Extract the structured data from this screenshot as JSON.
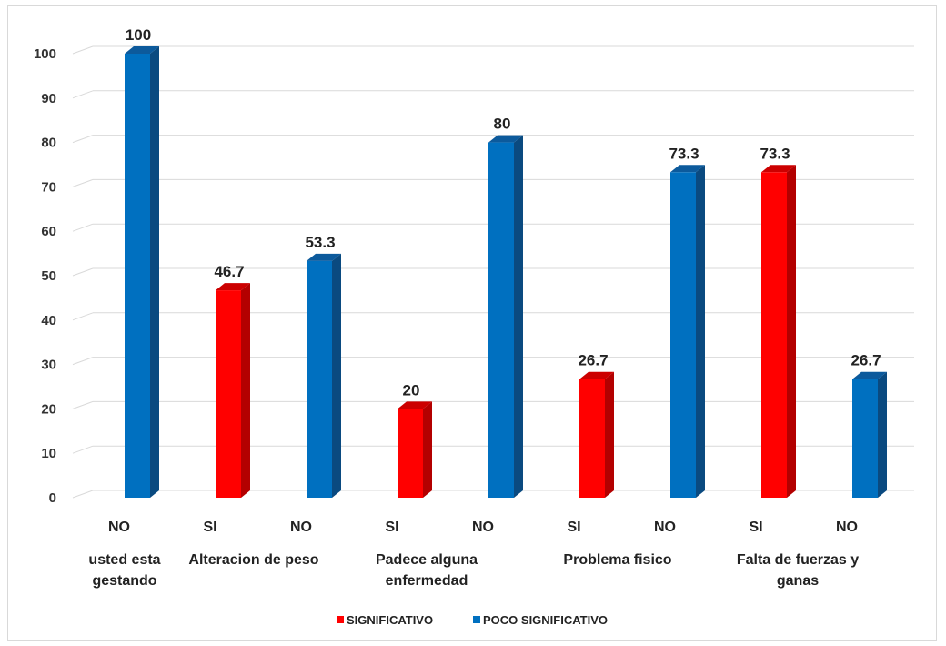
{
  "chart_data": {
    "type": "bar",
    "title": "",
    "xlabel": "",
    "ylabel": "",
    "ylim": [
      0,
      100
    ],
    "yticks": [
      0,
      10,
      20,
      30,
      40,
      50,
      60,
      70,
      80,
      90,
      100
    ],
    "grid": true,
    "legend_position": "bottom",
    "bars_3d": true,
    "categories": [
      "NO",
      "SI",
      "NO",
      "SI",
      "NO",
      "SI",
      "NO",
      "SI",
      "NO"
    ],
    "groups": [
      {
        "label": "usted esta gestando",
        "lines": [
          "usted esta",
          "gestando"
        ]
      },
      {
        "label": "Alteracion de peso",
        "lines": [
          "Alteracion de peso"
        ]
      },
      {
        "label": "Padece alguna enfermedad",
        "lines": [
          "Padece alguna",
          "enfermedad"
        ]
      },
      {
        "label": "Problema fisico",
        "lines": [
          "Problema fisico"
        ]
      },
      {
        "label": "Falta de fuerzas y ganas",
        "lines": [
          "Falta de fuerzas y",
          "ganas"
        ]
      }
    ],
    "series": [
      {
        "name": "SIGNIFICATIVO",
        "color": "#ff0000",
        "side_color": "#b30000",
        "top_color": "#cc0000",
        "values": [
          null,
          46.7,
          null,
          20,
          null,
          26.7,
          null,
          73.3,
          null
        ]
      },
      {
        "name": "POCO SIGNIFICATIVO",
        "color": "#0070c0",
        "side_color": "#0a4a80",
        "top_color": "#0c5a9c",
        "values": [
          100,
          null,
          53.3,
          null,
          80,
          null,
          73.3,
          null,
          26.7
        ]
      }
    ],
    "data_labels": [
      "100",
      "46.7",
      "53.3",
      "20",
      "80",
      "26.7",
      "73.3",
      "73.3",
      "26.7"
    ]
  }
}
